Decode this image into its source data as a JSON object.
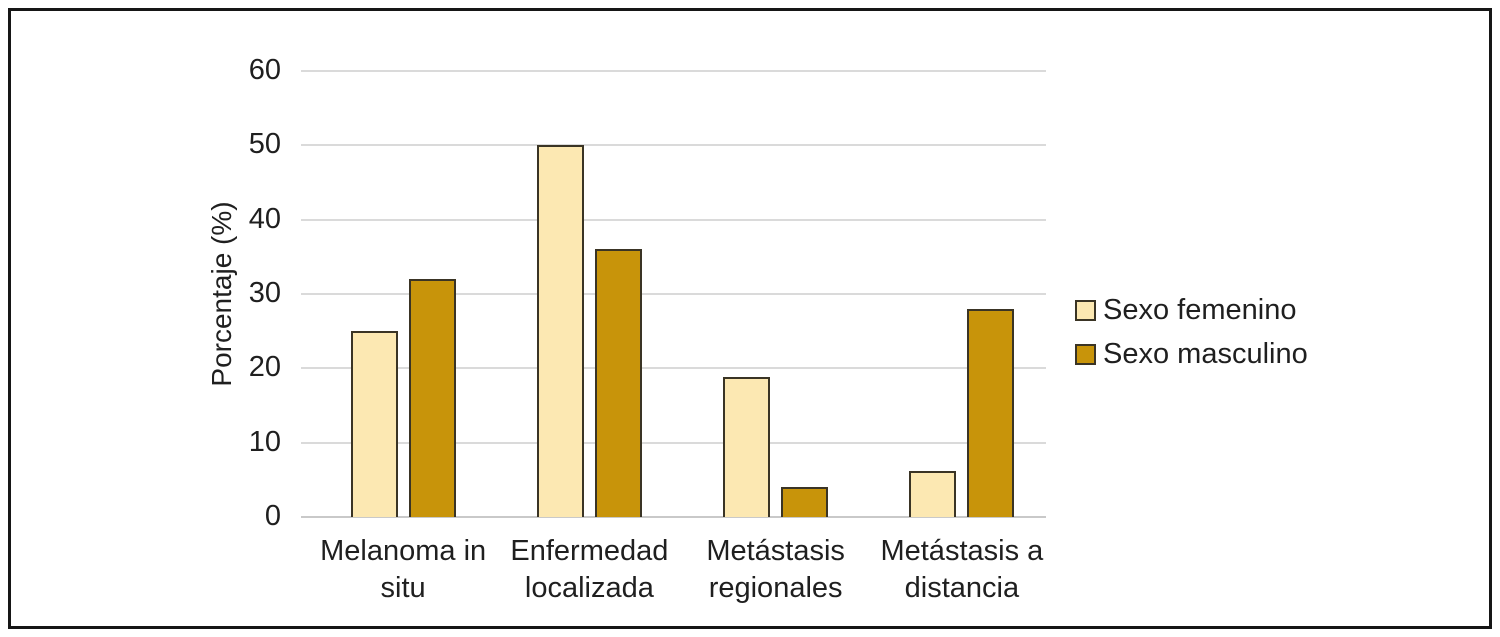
{
  "figure": {
    "background": "#ffffff",
    "frame_color": "#161616"
  },
  "chart_data": {
    "type": "bar",
    "title": "",
    "xlabel": "",
    "ylabel": "Porcentaje (%)",
    "ylim": [
      0,
      60
    ],
    "ytick_step": 10,
    "ytick_labels": [
      "0",
      "10",
      "20",
      "30",
      "40",
      "50",
      "60"
    ],
    "grid": true,
    "legend_position": "right",
    "categories": [
      "Melanoma in situ",
      "Enfermedad localizada",
      "Metástasis regionales",
      "Metástasis a distancia"
    ],
    "category_label_lines": [
      [
        "Melanoma in",
        "situ"
      ],
      [
        "Enfermedad",
        "localizada"
      ],
      [
        "Metástasis",
        "regionales"
      ],
      [
        "Metástasis a",
        "distancia"
      ]
    ],
    "series": [
      {
        "name": "Sexo femenino",
        "color": "#FCE8B2",
        "values": [
          25,
          50,
          18.8,
          6.2
        ]
      },
      {
        "name": "Sexo masculino",
        "color": "#C8940A",
        "values": [
          32,
          36,
          4,
          28
        ]
      }
    ],
    "bar_border_color": "#3a3425",
    "gridline_color": "#dadada"
  }
}
